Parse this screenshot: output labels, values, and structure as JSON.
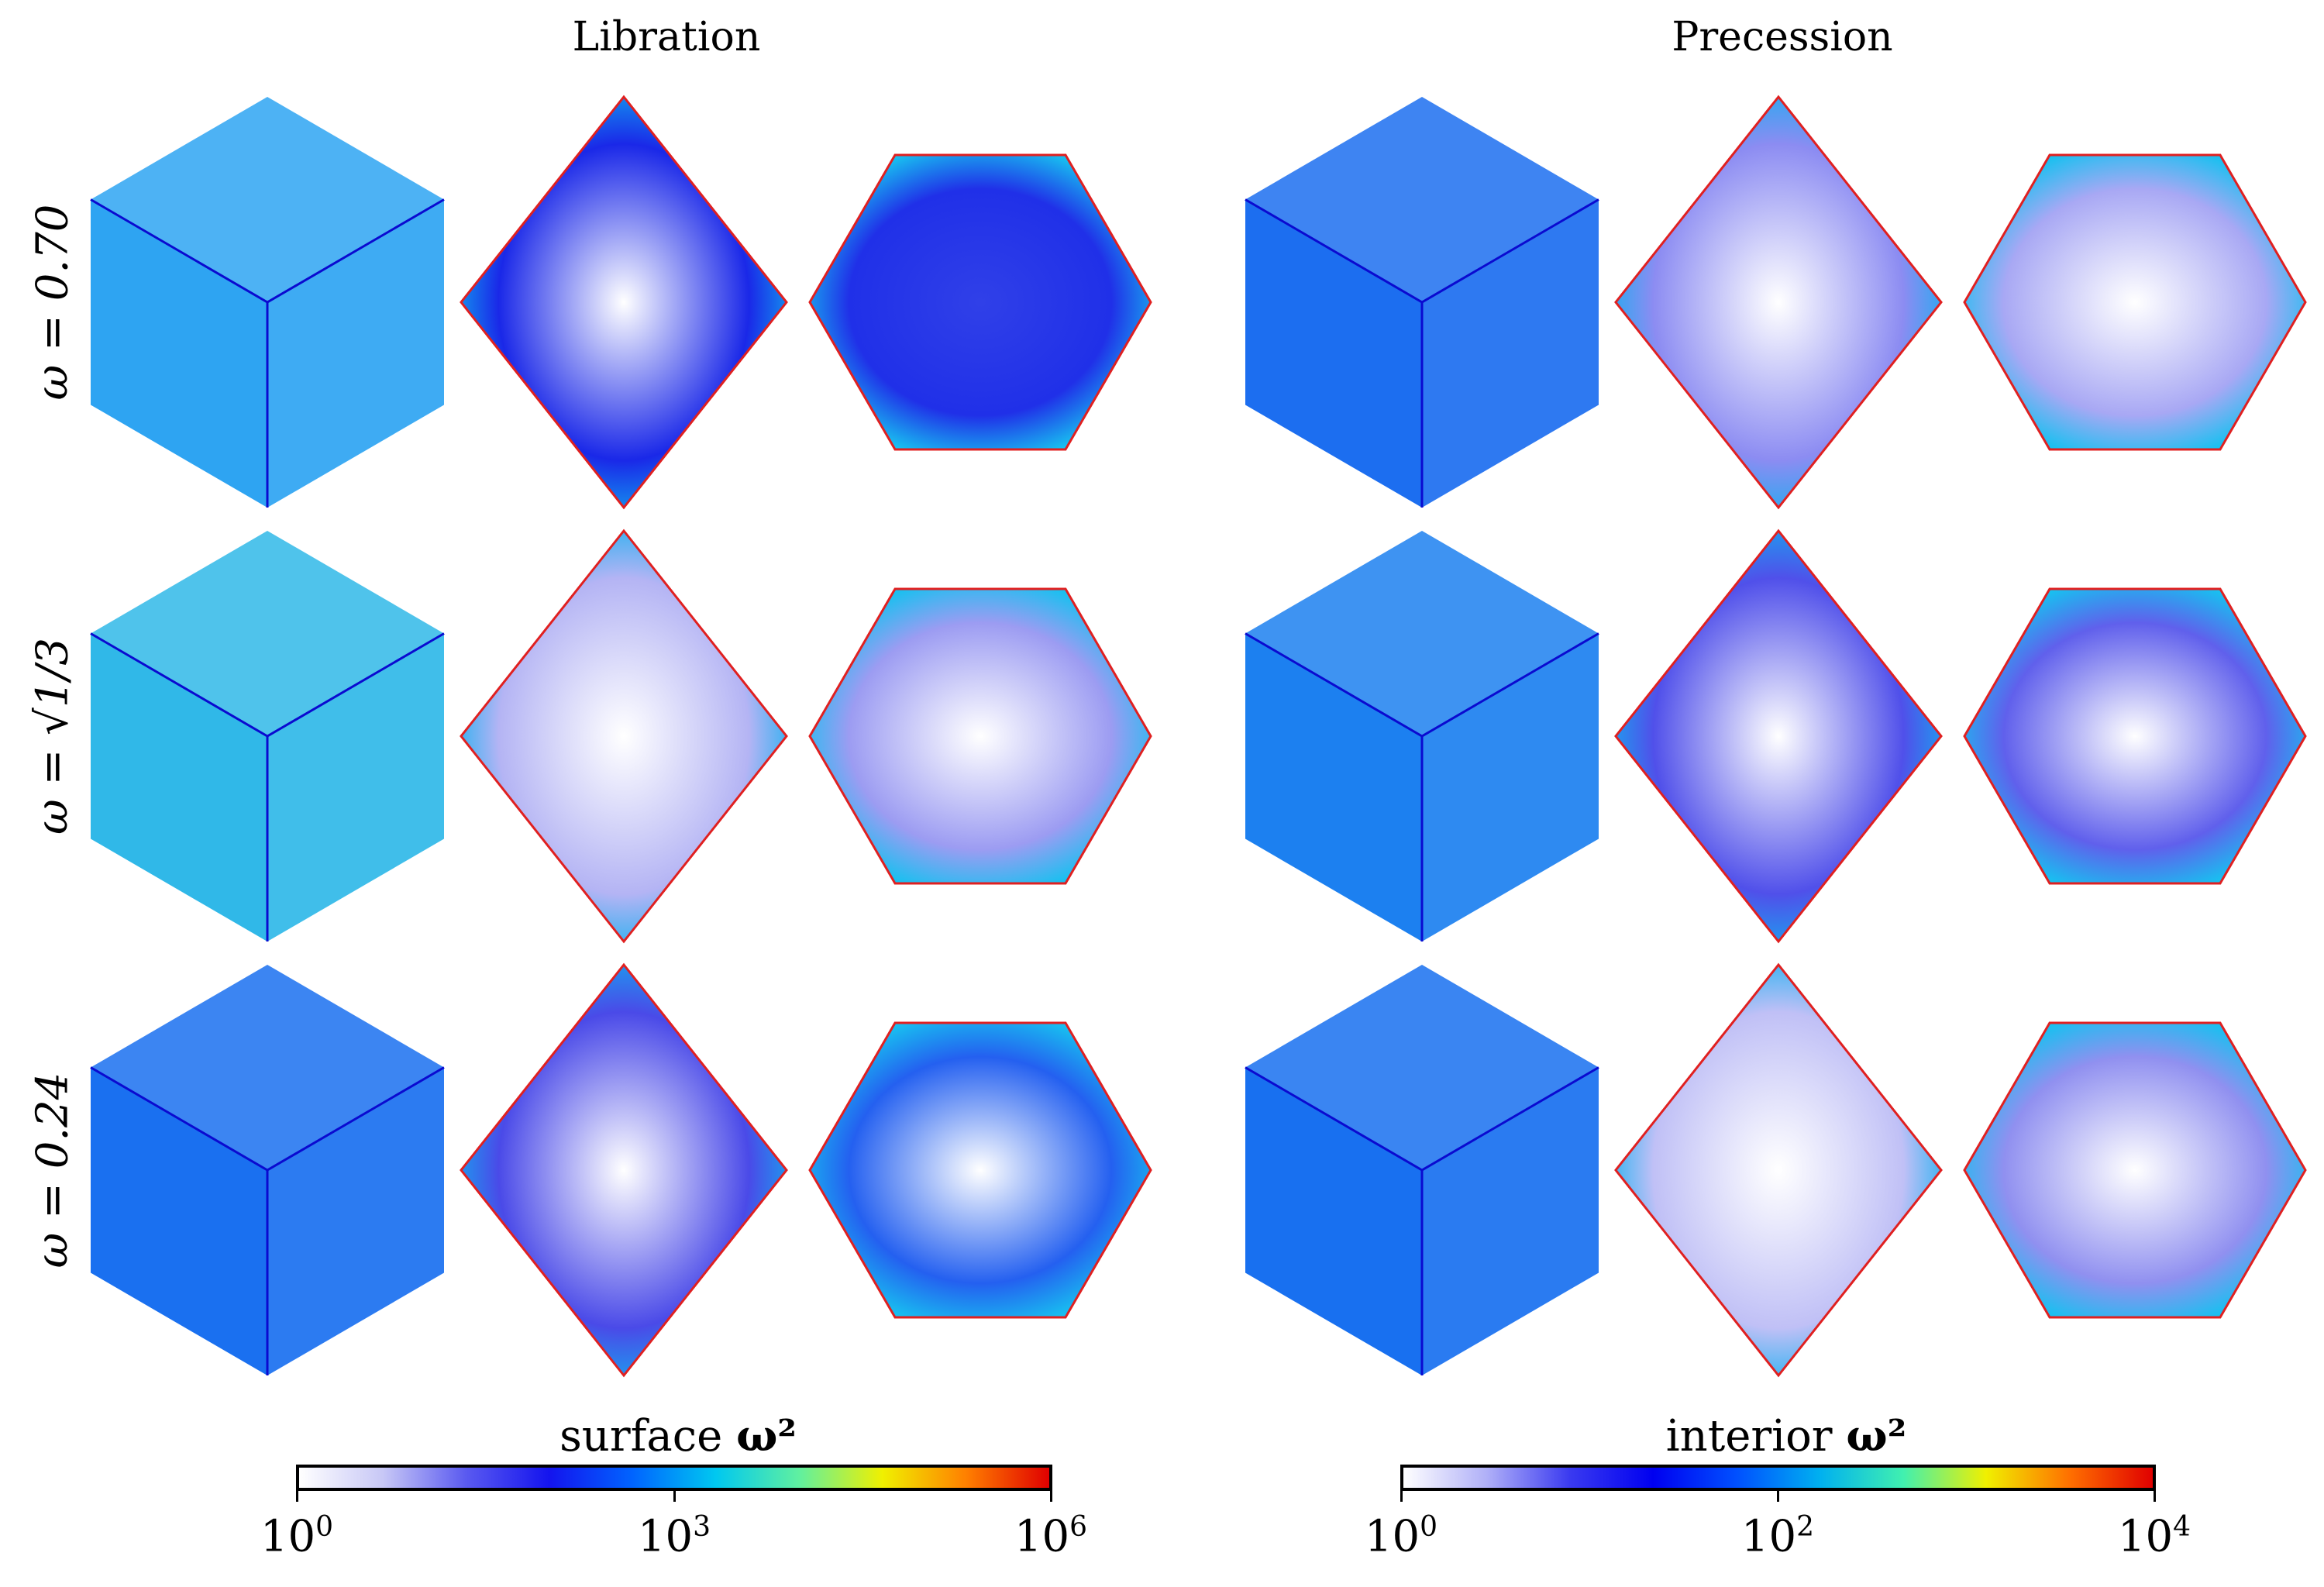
{
  "columns": [
    {
      "title": "Libration"
    },
    {
      "title": "Precession"
    }
  ],
  "rows": [
    {
      "label": "ω = 0.70"
    },
    {
      "label": "ω = √1/3"
    },
    {
      "label": "ω = 0.24"
    }
  ],
  "colorbars": [
    {
      "label_text": "surface",
      "label_symbol": "ω²",
      "ticks": [
        {
          "base": "10",
          "exp": "0"
        },
        {
          "base": "10",
          "exp": "3"
        },
        {
          "base": "10",
          "exp": "6"
        }
      ]
    },
    {
      "label_text": "interior",
      "label_symbol": "ω²",
      "ticks": [
        {
          "base": "10",
          "exp": "0"
        },
        {
          "base": "10",
          "exp": "2"
        },
        {
          "base": "10",
          "exp": "4"
        }
      ]
    }
  ],
  "colors": {
    "surface_map": [
      "#ffffff",
      "#c8c8f6",
      "#5a5af0",
      "#1414ee",
      "#0064ff",
      "#00c8f0",
      "#60f0a0",
      "#f0f000",
      "#ff8000",
      "#e00000"
    ],
    "interior_map": [
      "#ffffff",
      "#b0b0f8",
      "#3a3af0",
      "#0000f0",
      "#0050ff",
      "#00b0f0",
      "#40f0b0",
      "#f0f000",
      "#ff7000",
      "#e00000"
    ],
    "rows": [
      {
        "lib": {
          "cube": "#2ea4f2",
          "diamond": "#1a28e8",
          "hex": "#2030e8"
        },
        "pre": {
          "cube": "#1c6ef0",
          "diamond": "#8c8cf2",
          "hex": "#a8a8f4"
        }
      },
      {
        "lib": {
          "cube": "#30b8e8",
          "diamond": "#b4b4f4",
          "hex": "#9c9cf2"
        },
        "pre": {
          "cube": "#1c80f0",
          "diamond": "#5050ea",
          "hex": "#6060ec"
        }
      },
      {
        "lib": {
          "cube": "#1a70f0",
          "diamond": "#4a4ae8",
          "hex": "#2460f0"
        },
        "pre": {
          "cube": "#1870f0",
          "diamond": "#c0c0f6",
          "hex": "#9090f0"
        }
      }
    ]
  }
}
